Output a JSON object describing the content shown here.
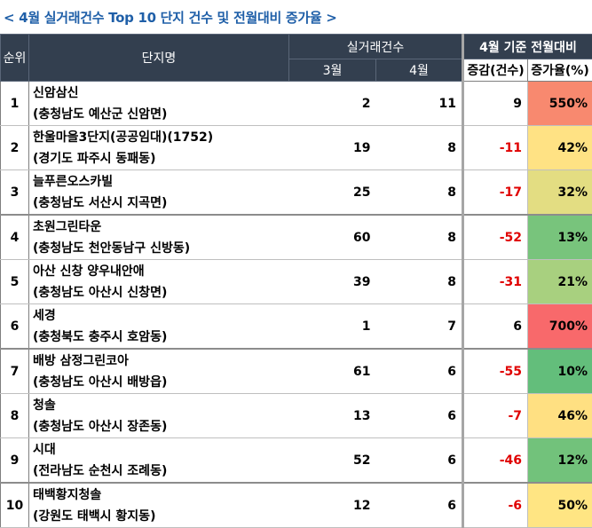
{
  "title": "< 4월 실거래건수 Top 10 단지 건수 및 전월대비 증가율 >",
  "headers": {
    "rank": "순위",
    "name": "단지명",
    "deals": "실거래건수",
    "march": "3월",
    "april": "4월",
    "compare": "4월 기준 전월대비",
    "diff": "증감(건수)",
    "rate": "증가율(%)"
  },
  "colors": {
    "header_bg": "#333f4f",
    "title": "#1f5fa8",
    "negative": "#e00000"
  },
  "rows": [
    {
      "rank": "1",
      "name": "신암삼신",
      "location": "(충청남도 예산군 신암면)",
      "march": "2",
      "april": "11",
      "diff": "9",
      "rate": "550%",
      "negative": false,
      "color": "#f8896f"
    },
    {
      "rank": "2",
      "name": "한울마을3단지(공공임대)(1752)",
      "location": "(경기도 파주시 동패동)",
      "march": "19",
      "april": "8",
      "diff": "-11",
      "rate": "42%",
      "negative": true,
      "color": "#ffe284"
    },
    {
      "rank": "3",
      "name": "늘푸른오스카빌",
      "location": "(충청남도 서산시 지곡면)",
      "march": "25",
      "april": "8",
      "diff": "-17",
      "rate": "32%",
      "negative": true,
      "color": "#e3dd82"
    },
    {
      "rank": "4",
      "name": "초원그린타운",
      "location": "(충청남도 천안동남구 신방동)",
      "march": "60",
      "april": "8",
      "diff": "-52",
      "rate": "13%",
      "negative": true,
      "color": "#78c47c"
    },
    {
      "rank": "5",
      "name": "아산 신창 양우내안애",
      "location": "(충청남도 아산시 신창면)",
      "march": "39",
      "april": "8",
      "diff": "-31",
      "rate": "21%",
      "negative": true,
      "color": "#a8d07f"
    },
    {
      "rank": "6",
      "name": "세경",
      "location": "(충청북도 충주시 호암동)",
      "march": "1",
      "april": "7",
      "diff": "6",
      "rate": "700%",
      "negative": false,
      "color": "#f8696b"
    },
    {
      "rank": "7",
      "name": "배방 삼정그린코아",
      "location": "(충청남도 아산시 배방읍)",
      "march": "61",
      "april": "6",
      "diff": "-55",
      "rate": "10%",
      "negative": true,
      "color": "#63be7b"
    },
    {
      "rank": "8",
      "name": "청솔",
      "location": "(충청남도 아산시 장존동)",
      "march": "13",
      "april": "6",
      "diff": "-7",
      "rate": "46%",
      "negative": true,
      "color": "#ffe082"
    },
    {
      "rank": "9",
      "name": "시대",
      "location": "(전라남도 순천시 조례동)",
      "march": "52",
      "april": "6",
      "diff": "-46",
      "rate": "12%",
      "negative": true,
      "color": "#72c27b"
    },
    {
      "rank": "10",
      "name": "태백황지청솔",
      "location": "(강원도 태백시 황지동)",
      "march": "12",
      "april": "6",
      "diff": "-6",
      "rate": "50%",
      "negative": true,
      "color": "#ffe583"
    }
  ]
}
